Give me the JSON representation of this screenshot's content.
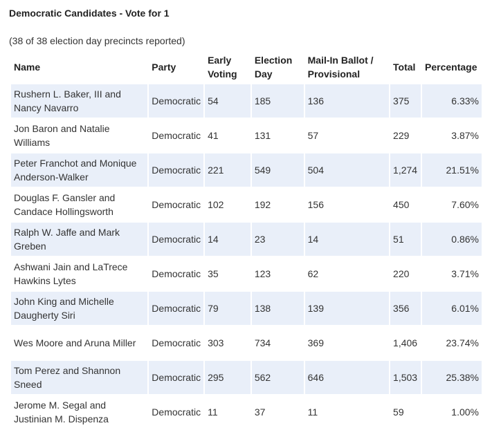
{
  "contest": {
    "title": "Democratic Candidates - Vote for 1",
    "precincts_note": "(38 of 38 election day precincts reported)"
  },
  "table": {
    "headers": {
      "name": "Name",
      "party": "Party",
      "early_voting": "Early Voting",
      "election_day": "Election Day",
      "mail_in": "Mail-In Ballot / Provisional",
      "total": "Total",
      "percentage": "Percentage"
    },
    "rows": [
      {
        "name": "Rushern L. Baker, III and Nancy Navarro",
        "party": "Democratic",
        "early": "54",
        "eday": "185",
        "mail": "136",
        "total": "375",
        "pct": "6.33%"
      },
      {
        "name": "Jon Baron and Natalie Williams",
        "party": "Democratic",
        "early": "41",
        "eday": "131",
        "mail": "57",
        "total": "229",
        "pct": "3.87%"
      },
      {
        "name": "Peter Franchot and Monique Anderson-Walker",
        "party": "Democratic",
        "early": "221",
        "eday": "549",
        "mail": "504",
        "total": "1,274",
        "pct": "21.51%"
      },
      {
        "name": "Douglas F. Gansler and Candace Hollingsworth",
        "party": "Democratic",
        "early": "102",
        "eday": "192",
        "mail": "156",
        "total": "450",
        "pct": "7.60%"
      },
      {
        "name": "Ralph W. Jaffe and Mark Greben",
        "party": "Democratic",
        "early": "14",
        "eday": "23",
        "mail": "14",
        "total": "51",
        "pct": "0.86%"
      },
      {
        "name": "Ashwani Jain and LaTrece Hawkins Lytes",
        "party": "Democratic",
        "early": "35",
        "eday": "123",
        "mail": "62",
        "total": "220",
        "pct": "3.71%"
      },
      {
        "name": "John King and Michelle Daugherty Siri",
        "party": "Democratic",
        "early": "79",
        "eday": "138",
        "mail": "139",
        "total": "356",
        "pct": "6.01%"
      },
      {
        "name": "Wes Moore and Aruna Miller",
        "party": "Democratic",
        "early": "303",
        "eday": "734",
        "mail": "369",
        "total": "1,406",
        "pct": "23.74%"
      },
      {
        "name": "Tom Perez and Shannon Sneed",
        "party": "Democratic",
        "early": "295",
        "eday": "562",
        "mail": "646",
        "total": "1,503",
        "pct": "25.38%"
      },
      {
        "name": "Jerome M. Segal and Justinian M. Dispenza",
        "party": "Democratic",
        "early": "11",
        "eday": "37",
        "mail": "11",
        "total": "59",
        "pct": "1.00%"
      }
    ]
  },
  "colors": {
    "stripe": "#e9eff9",
    "text": "#333333",
    "heading": "#222222"
  }
}
